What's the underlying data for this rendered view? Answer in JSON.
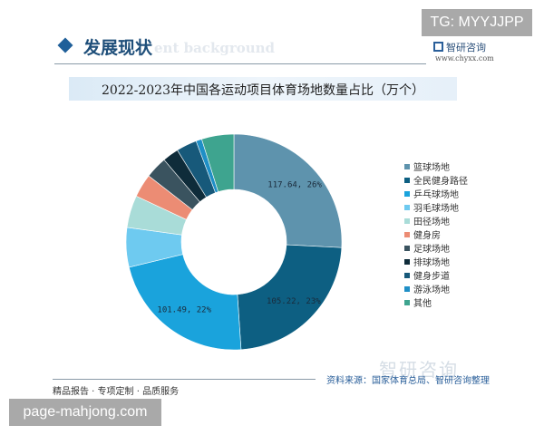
{
  "watermark_top": "TG: MYYJJPP",
  "watermark_bottom": "page-mahjong.com",
  "header": {
    "section_title": "发展现状",
    "ghost_text": "ent background",
    "logo_text": "智研咨询",
    "logo_url": "www.chyxx.com"
  },
  "footer": {
    "source": "资料来源：国家体育总局、智研咨询整理",
    "slogan": "精品报告 · 专项定制 · 品质服务",
    "logo_watermark": "智研咨询"
  },
  "chart_data": {
    "type": "pie",
    "subtype": "donut",
    "title": "2022-2023年中国各运动项目体育场地数量占比（万个）",
    "legend_position": "right",
    "start": "top, clockwise",
    "categories": [
      "篮球场地",
      "全民健身路径",
      "乒乓球场地",
      "羽毛球场地",
      "田径场地",
      "健身房",
      "足球场地",
      "排球场地",
      "健身步道",
      "游泳场地",
      "其他"
    ],
    "values": [
      117.64,
      105.22,
      101.49,
      27,
      22,
      16,
      15,
      11,
      14,
      4,
      22
    ],
    "labels": [
      "117.64, 26%",
      "105.22, 23%",
      "101.49, 22%",
      "",
      "",
      "",
      "",
      "",
      "",
      "",
      ""
    ],
    "colors": [
      "#5e93ad",
      "#0d5f82",
      "#1aa3dc",
      "#6ecaf0",
      "#a9dcd8",
      "#ec8c74",
      "#3a535f",
      "#0f2c3a",
      "#17597a",
      "#1f8fc6",
      "#3ea48f"
    ]
  }
}
